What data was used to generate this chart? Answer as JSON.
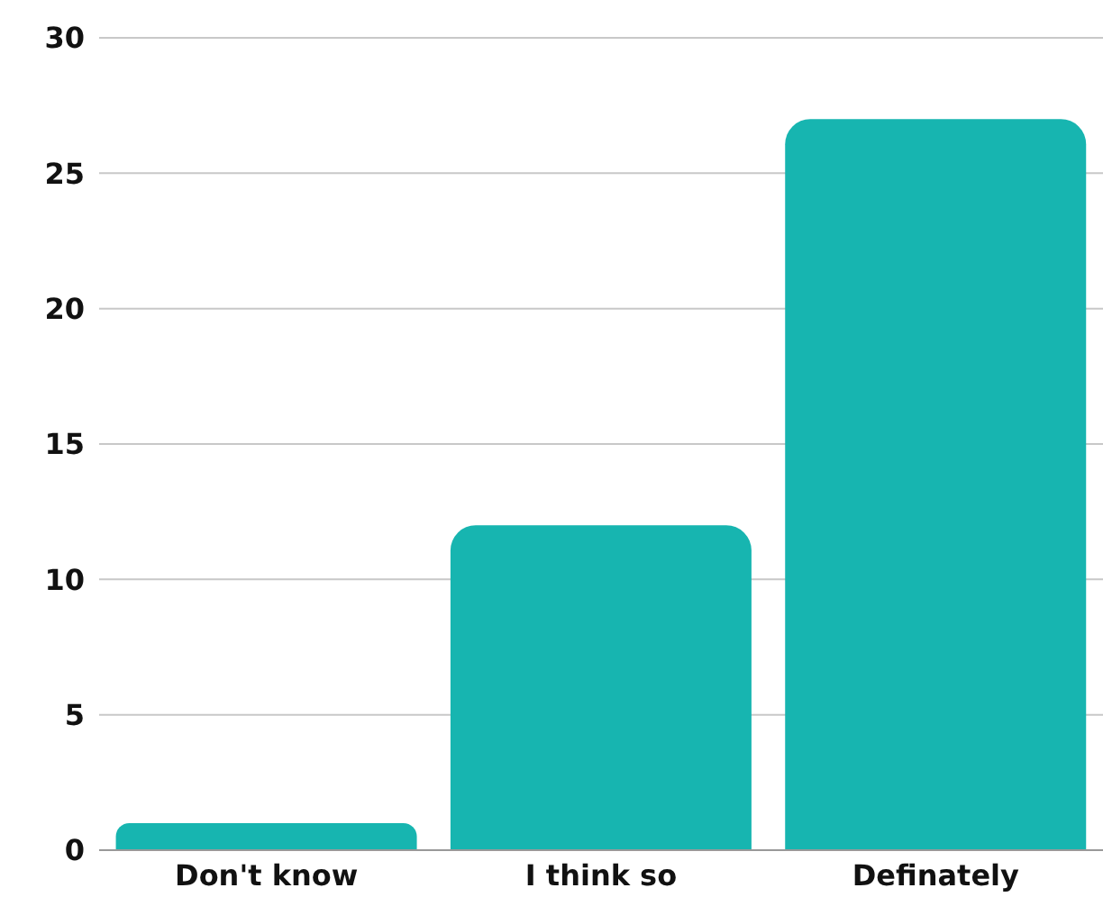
{
  "chart_data": {
    "type": "bar",
    "categories": [
      "Don't know",
      "I think so",
      "Definately"
    ],
    "values": [
      1,
      12,
      27
    ],
    "color": "#17b5b0",
    "ylim": [
      0,
      30
    ],
    "yticks": [
      0,
      5,
      10,
      15,
      20,
      25,
      30
    ],
    "grid": "y"
  }
}
